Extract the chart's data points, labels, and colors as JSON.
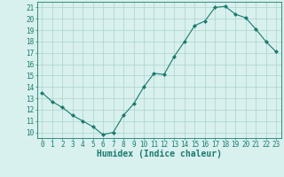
{
  "x": [
    0,
    1,
    2,
    3,
    4,
    5,
    6,
    7,
    8,
    9,
    10,
    11,
    12,
    13,
    14,
    15,
    16,
    17,
    18,
    19,
    20,
    21,
    22,
    23
  ],
  "y": [
    13.5,
    12.7,
    12.2,
    11.5,
    11.0,
    10.5,
    9.8,
    10.0,
    11.5,
    12.5,
    14.0,
    15.2,
    15.1,
    16.7,
    18.0,
    19.4,
    19.8,
    21.0,
    21.1,
    20.4,
    20.1,
    19.1,
    18.0,
    17.1
  ],
  "line_color": "#1a7a6e",
  "marker": "D",
  "marker_size": 2.0,
  "bg_color": "#d8f0ee",
  "grid_color": "#aad4cc",
  "xlabel": "Humidex (Indice chaleur)",
  "xlim": [
    -0.5,
    23.5
  ],
  "ylim": [
    9.5,
    21.5
  ],
  "yticks": [
    10,
    11,
    12,
    13,
    14,
    15,
    16,
    17,
    18,
    19,
    20,
    21
  ],
  "xticks": [
    0,
    1,
    2,
    3,
    4,
    5,
    6,
    7,
    8,
    9,
    10,
    11,
    12,
    13,
    14,
    15,
    16,
    17,
    18,
    19,
    20,
    21,
    22,
    23
  ],
  "tick_color": "#1a7a6e",
  "tick_fontsize": 5.5,
  "xlabel_fontsize": 7.0
}
